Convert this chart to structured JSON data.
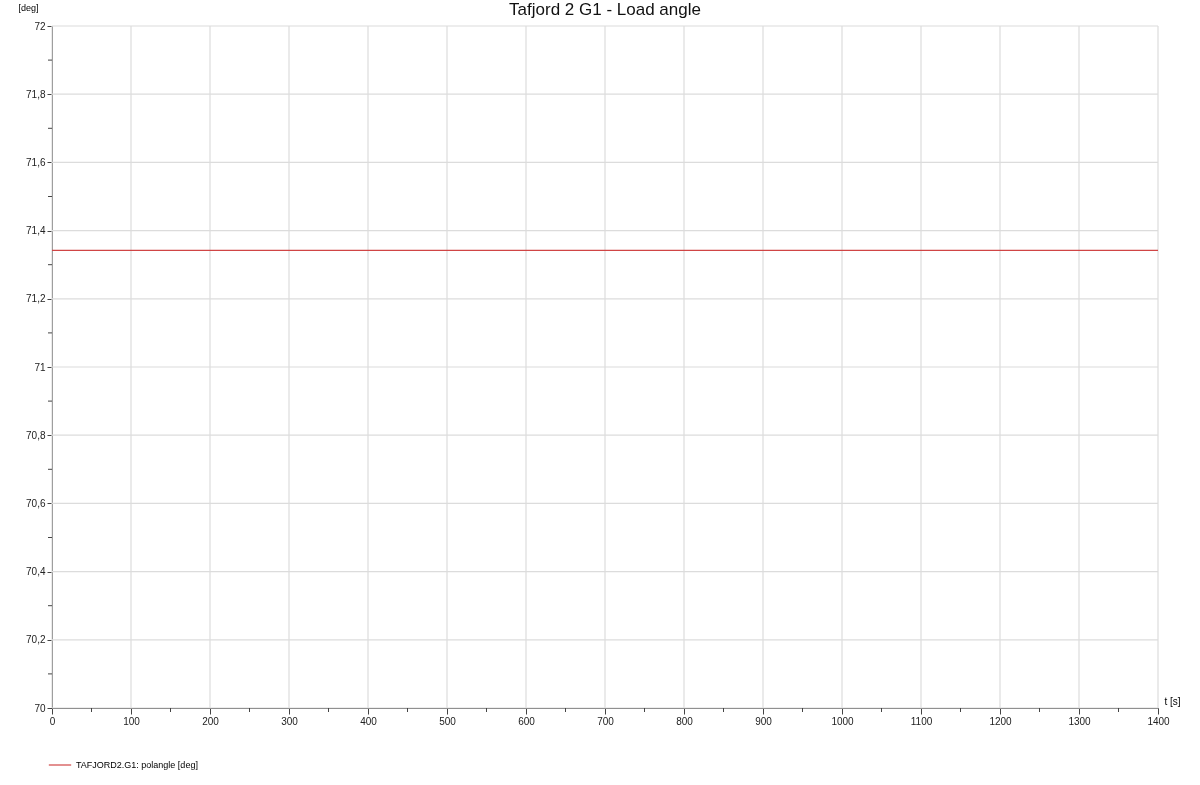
{
  "chart_data": {
    "type": "line",
    "title": "Tafjord 2 G1 - Load angle",
    "xlabel": "t [s]",
    "ylabel": "[deg]",
    "x": [
      0,
      1400
    ],
    "series": [
      {
        "name": "TAFJORD2.G1: polangle [deg]",
        "color": "#d04545",
        "values": [
          71.342,
          71.342
        ]
      }
    ],
    "xlim": [
      0,
      1400
    ],
    "ylim": [
      70,
      72
    ],
    "xticks": [
      0,
      {
        "value": 50,
        "label": null
      },
      100,
      {
        "value": 150,
        "label": null
      },
      200,
      {
        "value": 250,
        "label": null
      },
      300,
      {
        "value": 350,
        "label": null
      },
      400,
      {
        "value": 450,
        "label": null
      },
      500,
      {
        "value": 550,
        "label": null
      },
      600,
      {
        "value": 650,
        "label": null
      },
      700,
      {
        "value": 750,
        "label": null
      },
      800,
      {
        "value": 850,
        "label": null
      },
      900,
      {
        "value": 950,
        "label": null
      },
      1000,
      {
        "value": 1050,
        "label": null
      },
      1100,
      {
        "value": 1150,
        "label": null
      },
      1200,
      {
        "value": 1250,
        "label": null
      },
      1300,
      {
        "value": 1350,
        "label": null
      },
      1400
    ],
    "yticks": [
      70,
      {
        "value": 70.1,
        "label": null
      },
      {
        "value": 70.2,
        "label": "70,2"
      },
      {
        "value": 70.3,
        "label": null
      },
      {
        "value": 70.4,
        "label": "70,4"
      },
      {
        "value": 70.5,
        "label": null
      },
      {
        "value": 70.6,
        "label": "70,6"
      },
      {
        "value": 70.7,
        "label": null
      },
      {
        "value": 70.8,
        "label": "70,8"
      },
      {
        "value": 70.9,
        "label": null
      },
      71,
      {
        "value": 71.1,
        "label": null
      },
      {
        "value": 71.2,
        "label": "71,2"
      },
      {
        "value": 71.3,
        "label": null
      },
      {
        "value": 71.4,
        "label": "71,4"
      },
      {
        "value": 71.5,
        "label": null
      },
      {
        "value": 71.6,
        "label": "71,6"
      },
      {
        "value": 71.7,
        "label": null
      },
      {
        "value": 71.8,
        "label": "71,8"
      },
      {
        "value": 71.9,
        "label": null
      },
      72
    ],
    "grid": true,
    "legend": "bottom",
    "marker": "none",
    "line_style": "solid"
  }
}
